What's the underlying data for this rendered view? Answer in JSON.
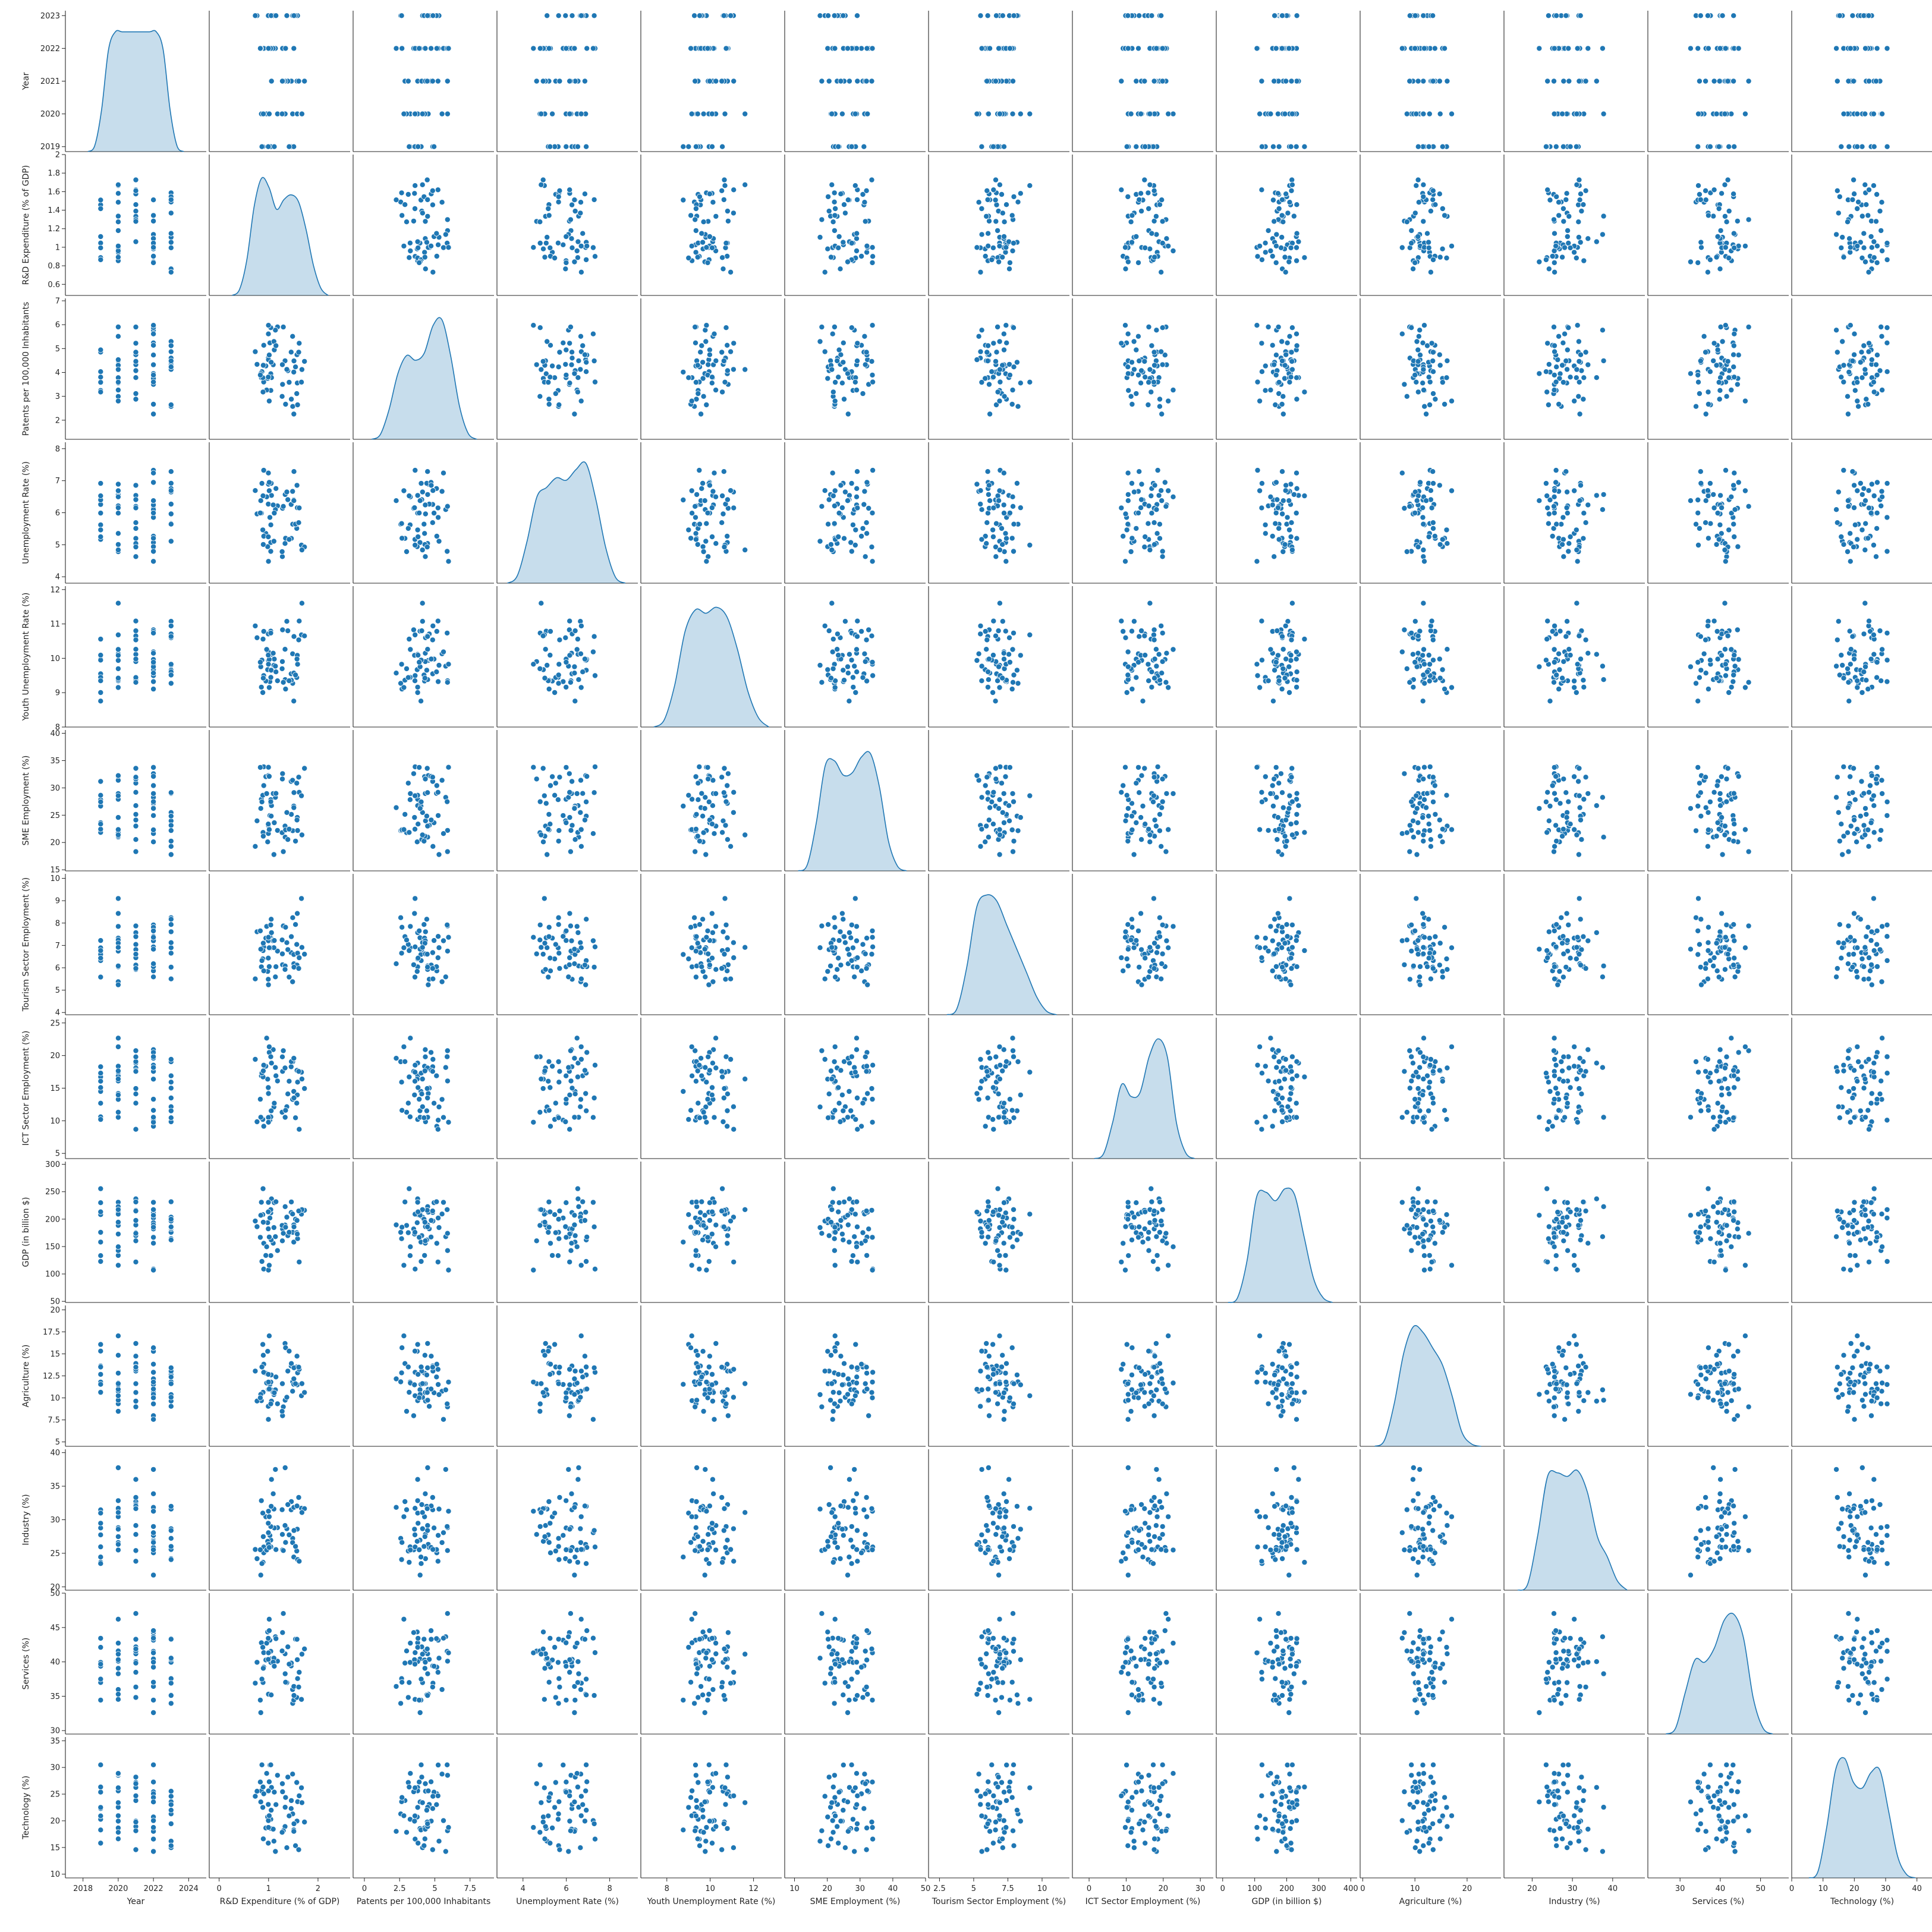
{
  "chart_data": {
    "type": "scatter",
    "layout": "pairplot",
    "diagonal_type": "kde",
    "grid": false,
    "legend": null,
    "point_color": "#1f77b4",
    "kde_fill_color": "#1f77b4",
    "point_edge_color": "#ffffff",
    "variables": [
      {
        "label": "Year",
        "range": [
          2019,
          2023
        ],
        "xlim": [
          2017,
          2025
        ],
        "ylim": [
          2018.85,
          2023.15
        ],
        "xticks": [
          2018,
          2020,
          2022,
          2024
        ],
        "yticks": [
          2019,
          2020,
          2021,
          2022,
          2023
        ],
        "discrete": [
          2019,
          2020,
          2021,
          2022,
          2023
        ],
        "kde": [
          0.0,
          0.05,
          0.35,
          0.85,
          1.0,
          1.0,
          1.0,
          1.0,
          1.0,
          1.0,
          1.0,
          0.85,
          0.35,
          0.05,
          0.0
        ]
      },
      {
        "label": "R&D Expenditure (% of GDP)",
        "range": [
          0.52,
          1.95
        ],
        "xlim": [
          -0.2,
          2.65
        ],
        "ylim": [
          0.48,
          2.0
        ],
        "xticks": [
          0,
          1,
          2
        ],
        "yticks": [
          0.6,
          0.8,
          1.0,
          1.2,
          1.4,
          1.6,
          1.8,
          2.0
        ],
        "kde": [
          0.0,
          0.05,
          0.3,
          0.75,
          0.98,
          0.9,
          0.72,
          0.8,
          0.84,
          0.78,
          0.55,
          0.25,
          0.06,
          0.0
        ]
      },
      {
        "label": "Patents per 100,000 Inhabitants",
        "range": [
          1.5,
          7.0
        ],
        "xlim": [
          -0.8,
          9.2
        ],
        "ylim": [
          1.2,
          7.1
        ],
        "xticks": [
          0.0,
          2.5,
          5.0,
          7.5
        ],
        "yticks": [
          2,
          3,
          4,
          5,
          6,
          7
        ],
        "kde": [
          0.0,
          0.04,
          0.25,
          0.55,
          0.7,
          0.66,
          0.72,
          0.95,
          1.0,
          0.7,
          0.28,
          0.05,
          0.0
        ]
      },
      {
        "label": "Unemployment Rate (%)",
        "range": [
          4.0,
          8.0
        ],
        "xlim": [
          2.8,
          9.3
        ],
        "ylim": [
          3.8,
          8.2
        ],
        "xticks": [
          4,
          6,
          8
        ],
        "yticks": [
          4,
          5,
          6,
          7,
          8
        ],
        "kde": [
          0.0,
          0.06,
          0.35,
          0.72,
          0.8,
          0.88,
          0.86,
          0.95,
          1.0,
          0.7,
          0.3,
          0.05,
          0.0
        ]
      },
      {
        "label": "Youth Unemployment Rate (%)",
        "range": [
          8.1,
          12.0
        ],
        "xlim": [
          6.8,
          13.3
        ],
        "ylim": [
          8.0,
          12.1
        ],
        "xticks": [
          8,
          10,
          12
        ],
        "yticks": [
          8,
          9,
          10,
          11,
          12
        ],
        "kde": [
          0.0,
          0.06,
          0.35,
          0.8,
          0.98,
          0.95,
          1.0,
          0.92,
          0.65,
          0.3,
          0.08,
          0.0
        ]
      },
      {
        "label": "SME Employment (%)",
        "range": [
          15.5,
          39.8
        ],
        "xlim": [
          7,
          50
        ],
        "ylim": [
          14.8,
          40.6
        ],
        "xticks": [
          10,
          20,
          30,
          40,
          50
        ],
        "yticks": [
          15,
          20,
          25,
          30,
          35,
          40
        ],
        "kde": [
          0.0,
          0.05,
          0.4,
          0.88,
          0.92,
          0.8,
          0.82,
          0.95,
          0.98,
          0.7,
          0.25,
          0.04,
          0.0
        ]
      },
      {
        "label": "Tourism Sector Employment (%)",
        "range": [
          4.1,
          10.0
        ],
        "xlim": [
          1.7,
          12.0
        ],
        "ylim": [
          3.9,
          10.2
        ],
        "xticks": [
          2.5,
          5.0,
          7.5,
          10.0
        ],
        "yticks": [
          4,
          5,
          6,
          7,
          8,
          9,
          10
        ],
        "kde": [
          0.0,
          0.05,
          0.4,
          0.9,
          1.0,
          0.95,
          0.75,
          0.55,
          0.35,
          0.15,
          0.03,
          0.0
        ]
      },
      {
        "label": "ICT Sector Employment (%)",
        "range": [
          5.0,
          24.9
        ],
        "xlim": [
          -4.5,
          33.5
        ],
        "ylim": [
          4.2,
          25.8
        ],
        "xticks": [
          0,
          10,
          20,
          30
        ],
        "yticks": [
          5,
          10,
          15,
          20,
          25
        ],
        "kde": [
          0.0,
          0.04,
          0.3,
          0.62,
          0.52,
          0.55,
          0.85,
          1.0,
          0.85,
          0.3,
          0.05,
          0.0
        ]
      },
      {
        "label": "GDP (in billion $)",
        "range": [
          60,
          300
        ],
        "xlim": [
          -20,
          420
        ],
        "ylim": [
          48,
          305
        ],
        "xticks": [
          0,
          100,
          200,
          300,
          400
        ],
        "yticks": [
          50,
          100,
          150,
          200,
          250,
          300
        ],
        "kde": [
          0.0,
          0.04,
          0.35,
          0.88,
          0.92,
          0.85,
          0.95,
          0.9,
          0.55,
          0.2,
          0.04,
          0.0
        ]
      },
      {
        "label": "Agriculture (%)",
        "range": [
          5.0,
          20.0
        ],
        "xlim": [
          -0.5,
          26.5
        ],
        "ylim": [
          4.5,
          20.5
        ],
        "xticks": [
          0,
          10,
          20
        ],
        "yticks": [
          5.0,
          7.5,
          10.0,
          12.5,
          15.0,
          17.5,
          20.0
        ],
        "kde": [
          0.0,
          0.05,
          0.35,
          0.78,
          1.0,
          0.95,
          0.82,
          0.68,
          0.42,
          0.12,
          0.02,
          0.0
        ]
      },
      {
        "label": "Industry (%)",
        "range": [
          20.0,
          40.0
        ],
        "xlim": [
          13,
          48
        ],
        "ylim": [
          19.5,
          40.5
        ],
        "xticks": [
          20,
          30,
          40
        ],
        "yticks": [
          20,
          25,
          30,
          35,
          40
        ],
        "kde": [
          0.0,
          0.05,
          0.45,
          0.95,
          0.98,
          0.95,
          1.0,
          0.82,
          0.45,
          0.28,
          0.08,
          0.0
        ]
      },
      {
        "label": "Services (%)",
        "range": [
          30.0,
          49.5
        ],
        "xlim": [
          22,
          57
        ],
        "ylim": [
          29.5,
          50.0
        ],
        "xticks": [
          30,
          40,
          50
        ],
        "yticks": [
          30,
          35,
          40,
          45,
          50
        ],
        "kde": [
          0.0,
          0.05,
          0.35,
          0.62,
          0.6,
          0.72,
          0.95,
          1.0,
          0.8,
          0.3,
          0.05,
          0.0
        ]
      },
      {
        "label": "Technology (%)",
        "range": [
          10.0,
          35.0
        ],
        "xlim": [
          0,
          45
        ],
        "ylim": [
          9.3,
          35.7
        ],
        "xticks": [
          0,
          10,
          20,
          30,
          40
        ],
        "yticks": [
          10,
          15,
          20,
          25,
          30,
          35
        ],
        "kde": [
          0.0,
          0.05,
          0.42,
          0.9,
          1.0,
          0.8,
          0.75,
          0.88,
          0.9,
          0.55,
          0.18,
          0.03,
          0.0
        ]
      }
    ],
    "series": [
      {
        "name": "",
        "n_points": 60
      }
    ]
  }
}
